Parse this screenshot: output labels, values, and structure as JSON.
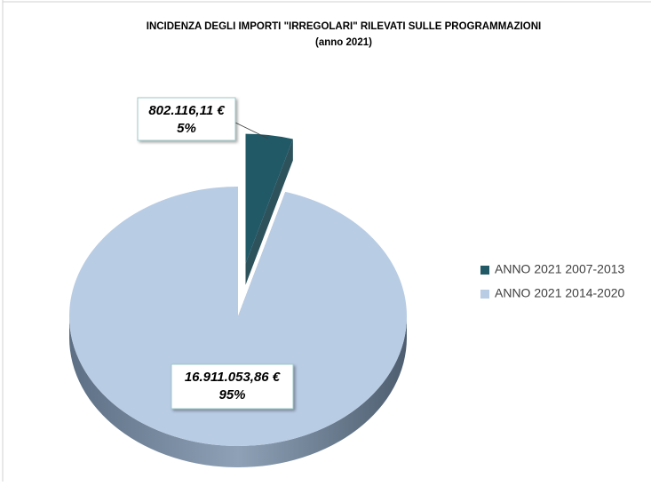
{
  "chart_data": {
    "type": "pie3d",
    "title": "INCIDENZA DEGLI IMPORTI \"IRREGOLARI\" RILEVATI SULLE PROGRAMMAZIONI",
    "subtitle": "(anno 2021)",
    "categories": [
      "ANNO 2021 2007-2013",
      "ANNO 2021 2014-2020"
    ],
    "values": [
      802116.11,
      16911053.86
    ],
    "value_labels": [
      "802.116,11 €",
      "16.911.053,86 €"
    ],
    "percent_labels": [
      "5%",
      "95%"
    ],
    "colors": [
      "#215967",
      "#b8cce4"
    ],
    "side_colors": [
      "#163f4a",
      "#6f8298"
    ],
    "exploded": [
      true,
      false
    ],
    "legend": "right"
  }
}
